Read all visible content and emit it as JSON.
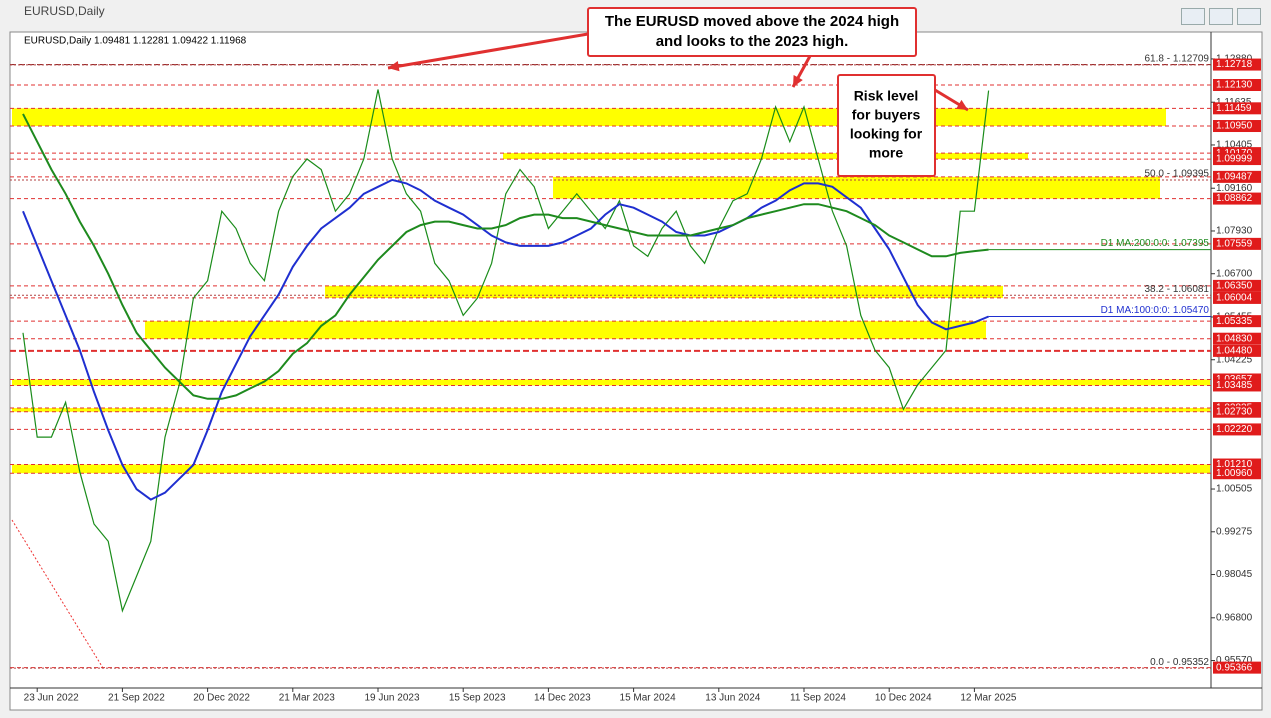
{
  "window": {
    "title": "EURUSD,Daily"
  },
  "chart_data": {
    "type": "line",
    "header": "EURUSD,Daily  1.09481 1.12281 1.09422 1.11968",
    "categories": [
      null,
      "23 Jun 2022",
      null,
      null,
      null,
      null,
      null,
      "21 Sep 2022",
      null,
      null,
      null,
      null,
      null,
      "20 Dec 2022",
      null,
      null,
      null,
      null,
      null,
      "21 Mar 2023",
      null,
      null,
      null,
      null,
      null,
      "19 Jun 2023",
      null,
      null,
      null,
      null,
      null,
      "15 Sep 2023",
      null,
      null,
      null,
      null,
      null,
      "14 Dec 2023",
      null,
      null,
      null,
      null,
      null,
      "15 Mar 2024",
      null,
      null,
      null,
      null,
      null,
      "13 Jun 2024",
      null,
      null,
      null,
      null,
      null,
      "11 Sep 2024",
      null,
      null,
      null,
      null,
      null,
      "10 Dec 2024",
      null,
      null,
      null,
      null,
      null,
      "12 Mar 2025",
      null
    ],
    "series": [
      {
        "color": "#1a8c1a",
        "values": [
          1.05,
          1.02,
          1.02,
          1.03,
          1.01,
          0.995,
          0.99,
          0.97,
          0.98,
          0.99,
          1.02,
          1.035,
          1.06,
          1.065,
          1.085,
          1.08,
          1.07,
          1.065,
          1.085,
          1.095,
          1.1,
          1.097,
          1.085,
          1.09,
          1.1,
          1.12,
          1.1,
          1.09,
          1.085,
          1.07,
          1.065,
          1.055,
          1.06,
          1.07,
          1.09,
          1.097,
          1.092,
          1.08,
          1.085,
          1.09,
          1.085,
          1.08,
          1.088,
          1.075,
          1.072,
          1.08,
          1.085,
          1.075,
          1.07,
          1.08,
          1.088,
          1.09,
          1.1,
          1.115,
          1.105,
          1.115,
          1.1,
          1.085,
          1.075,
          1.055,
          1.045,
          1.04,
          1.028,
          1.035,
          1.04,
          1.045,
          1.085,
          1.085,
          1.11968
        ]
      },
      {
        "label": "D1 MA:100:0:0: 1.05470",
        "color": "#1f2fd0",
        "values": [
          1.085,
          1.075,
          1.065,
          1.055,
          1.045,
          1.033,
          1.022,
          1.012,
          1.005,
          1.002,
          1.004,
          1.008,
          1.012,
          1.022,
          1.033,
          1.041,
          1.049,
          1.055,
          1.061,
          1.069,
          1.075,
          1.08,
          1.083,
          1.086,
          1.09,
          1.092,
          1.094,
          1.093,
          1.091,
          1.088,
          1.086,
          1.084,
          1.081,
          1.078,
          1.076,
          1.075,
          1.075,
          1.075,
          1.076,
          1.078,
          1.08,
          1.084,
          1.087,
          1.086,
          1.084,
          1.082,
          1.079,
          1.078,
          1.078,
          1.079,
          1.081,
          1.083,
          1.086,
          1.088,
          1.091,
          1.093,
          1.093,
          1.092,
          1.089,
          1.086,
          1.08,
          1.074,
          1.066,
          1.058,
          1.053,
          1.051,
          1.052,
          1.053,
          1.0547
        ]
      },
      {
        "label": "D1 MA:200:0:0: 1.07395",
        "color": "#1e8a1e",
        "values": [
          1.113,
          1.105,
          1.097,
          1.09,
          1.082,
          1.075,
          1.067,
          1.058,
          1.05,
          1.045,
          1.04,
          1.036,
          1.032,
          1.031,
          1.031,
          1.032,
          1.034,
          1.036,
          1.039,
          1.044,
          1.047,
          1.052,
          1.055,
          1.061,
          1.066,
          1.071,
          1.075,
          1.079,
          1.081,
          1.082,
          1.082,
          1.081,
          1.08,
          1.08,
          1.081,
          1.083,
          1.084,
          1.084,
          1.083,
          1.083,
          1.082,
          1.081,
          1.08,
          1.079,
          1.078,
          1.078,
          1.078,
          1.078,
          1.079,
          1.08,
          1.081,
          1.083,
          1.084,
          1.085,
          1.086,
          1.087,
          1.087,
          1.086,
          1.085,
          1.083,
          1.081,
          1.078,
          1.076,
          1.074,
          1.072,
          1.072,
          1.073,
          1.0735,
          1.07395
        ]
      }
    ],
    "ylim": [
      0.9478,
      1.1354
    ],
    "yticks": [
      {
        "value": 1.1288,
        "label": "1.12880"
      },
      {
        "value": 1.11635,
        "label": "1.11635"
      },
      {
        "value": 1.10405,
        "label": "1.10405"
      },
      {
        "value": 1.0916,
        "label": "1.09160"
      },
      {
        "value": 1.0793,
        "label": "1.07930"
      },
      {
        "value": 1.067,
        "label": "1.06700"
      },
      {
        "value": 1.05455,
        "label": "1.05455"
      },
      {
        "value": 1.04225,
        "label": "1.04225"
      },
      {
        "value": 1.00505,
        "label": "1.00505"
      },
      {
        "value": 0.99275,
        "label": "0.99275"
      },
      {
        "value": 0.98045,
        "label": "0.98045"
      },
      {
        "value": 0.968,
        "label": "0.96800"
      },
      {
        "value": 0.9557,
        "label": "0.95570"
      }
    ],
    "levels": [
      {
        "value": 1.12718,
        "label": "1.12718"
      },
      {
        "value": 1.1213,
        "label": "1.12130"
      },
      {
        "value": 1.11459,
        "label": "1.11459"
      },
      {
        "value": 1.1095,
        "label": "1.10950"
      },
      {
        "value": 1.1017,
        "label": "1.10170"
      },
      {
        "value": 1.09999,
        "label": "1.09999"
      },
      {
        "value": 1.09487,
        "label": "1.09487"
      },
      {
        "value": 1.08862,
        "label": "1.08862"
      },
      {
        "value": 1.07559,
        "label": "1.07559"
      },
      {
        "value": 1.0635,
        "label": "1.06350"
      },
      {
        "value": 1.06004,
        "label": "1.06004"
      },
      {
        "value": 1.05335,
        "label": "1.05335"
      },
      {
        "value": 1.0483,
        "label": "1.04830"
      },
      {
        "value": 1.0448,
        "label": "1.04480"
      },
      {
        "value": 1.03657,
        "label": "1.03657"
      },
      {
        "value": 1.03485,
        "label": "1.03485"
      },
      {
        "value": 1.02835,
        "label": "1.02835"
      },
      {
        "value": 1.0273,
        "label": "1.02730"
      },
      {
        "value": 1.0222,
        "label": "1.02220"
      },
      {
        "value": 1.0121,
        "label": "1.01210"
      },
      {
        "value": 1.0096,
        "label": "1.00960"
      },
      {
        "value": 0.95366,
        "label": "0.95366"
      }
    ],
    "zones": [
      {
        "from": 1.11459,
        "to": 1.1095
      },
      {
        "from": 1.1017,
        "to": 1.09999
      },
      {
        "from": 1.09487,
        "to": 1.08862
      },
      {
        "from": 1.0635,
        "to": 1.06004
      },
      {
        "from": 1.05335,
        "to": 1.0483
      },
      {
        "from": 1.03657,
        "to": 1.03485
      },
      {
        "from": 1.02835,
        "to": 1.0273
      },
      {
        "from": 1.0121,
        "to": 1.0096
      }
    ],
    "zone_color": "#ffff00",
    "fib": [
      {
        "value": 1.12709,
        "label": "61.8 - 1.12709"
      },
      {
        "value": 1.09395,
        "label": "50.0 - 1.09395"
      },
      {
        "value": 1.06081,
        "label": "38.2 - 1.06081"
      },
      {
        "value": 0.95352,
        "label": "0.0 - 0.95352"
      }
    ],
    "annotations": [
      {
        "lines": [
          "The EURUSD moved above the 2024 high",
          "and looks to the 2023 high."
        ]
      },
      {
        "lines": [
          "Risk level",
          "for buyers",
          "looking for",
          "more"
        ]
      }
    ]
  }
}
